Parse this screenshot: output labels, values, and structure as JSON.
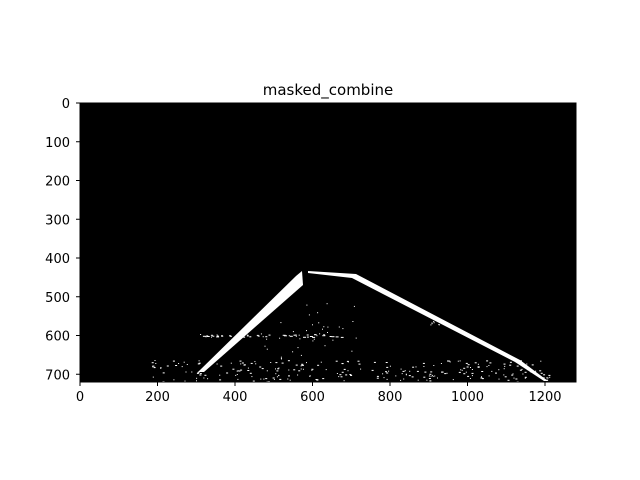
{
  "title": "masked_combine",
  "image": {
    "description_kind": "binary-mask",
    "background_color": "#000000",
    "foreground_color": "#ffffff"
  },
  "axes": {
    "x_ticks": [
      "0",
      "200",
      "400",
      "600",
      "800",
      "1000",
      "1200"
    ],
    "y_ticks": [
      "0",
      "100",
      "200",
      "300",
      "400",
      "500",
      "600",
      "700"
    ],
    "x_range": [
      0,
      1280
    ],
    "y_range": [
      720,
      0
    ]
  }
}
